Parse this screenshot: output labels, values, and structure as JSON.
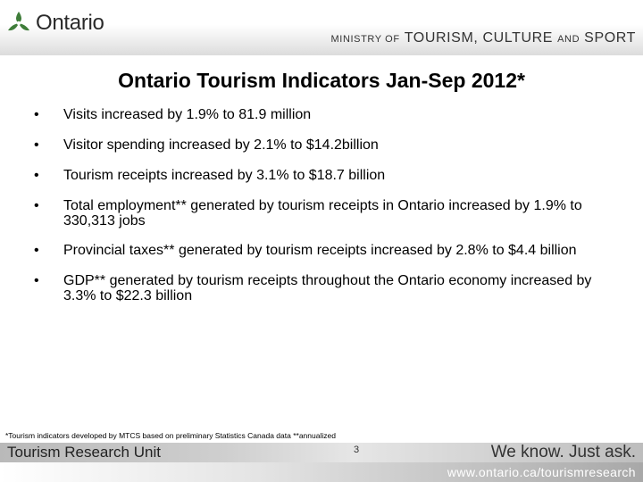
{
  "header": {
    "logo_text": "Ontario",
    "ministry": {
      "of_text": "MINISTRY OF",
      "tourism": "TOURISM,",
      "culture": "CULTURE",
      "and_text": "AND",
      "sport": "SPORT"
    }
  },
  "title": "Ontario Tourism Indicators Jan-Sep 2012*",
  "bullet_symbol": "•",
  "bullets": [
    "Visits increased by 1.9% to 81.9 million",
    "Visitor spending increased by 2.1% to $14.2billion",
    "Tourism receipts increased by 3.1% to $18.7 billion",
    "Total employment** generated by tourism receipts in Ontario increased by 1.9% to 330,313 jobs",
    "Provincial taxes** generated by tourism receipts increased by 2.8% to $4.4 billion",
    "GDP** generated by tourism receipts throughout the Ontario economy increased by 3.3% to $22.3 billion"
  ],
  "footnote": "*Tourism indicators developed by MTCS based on preliminary Statistics Canada data **annualized",
  "footer": {
    "unit": "Tourism Research Unit",
    "page_number": "3",
    "tagline": "We know. Just ask.",
    "url": "www.ontario.ca/tourismresearch"
  },
  "colors": {
    "logo_green": "#3f7d3a",
    "text": "#000000",
    "band_gray": "#c8c8c8"
  }
}
